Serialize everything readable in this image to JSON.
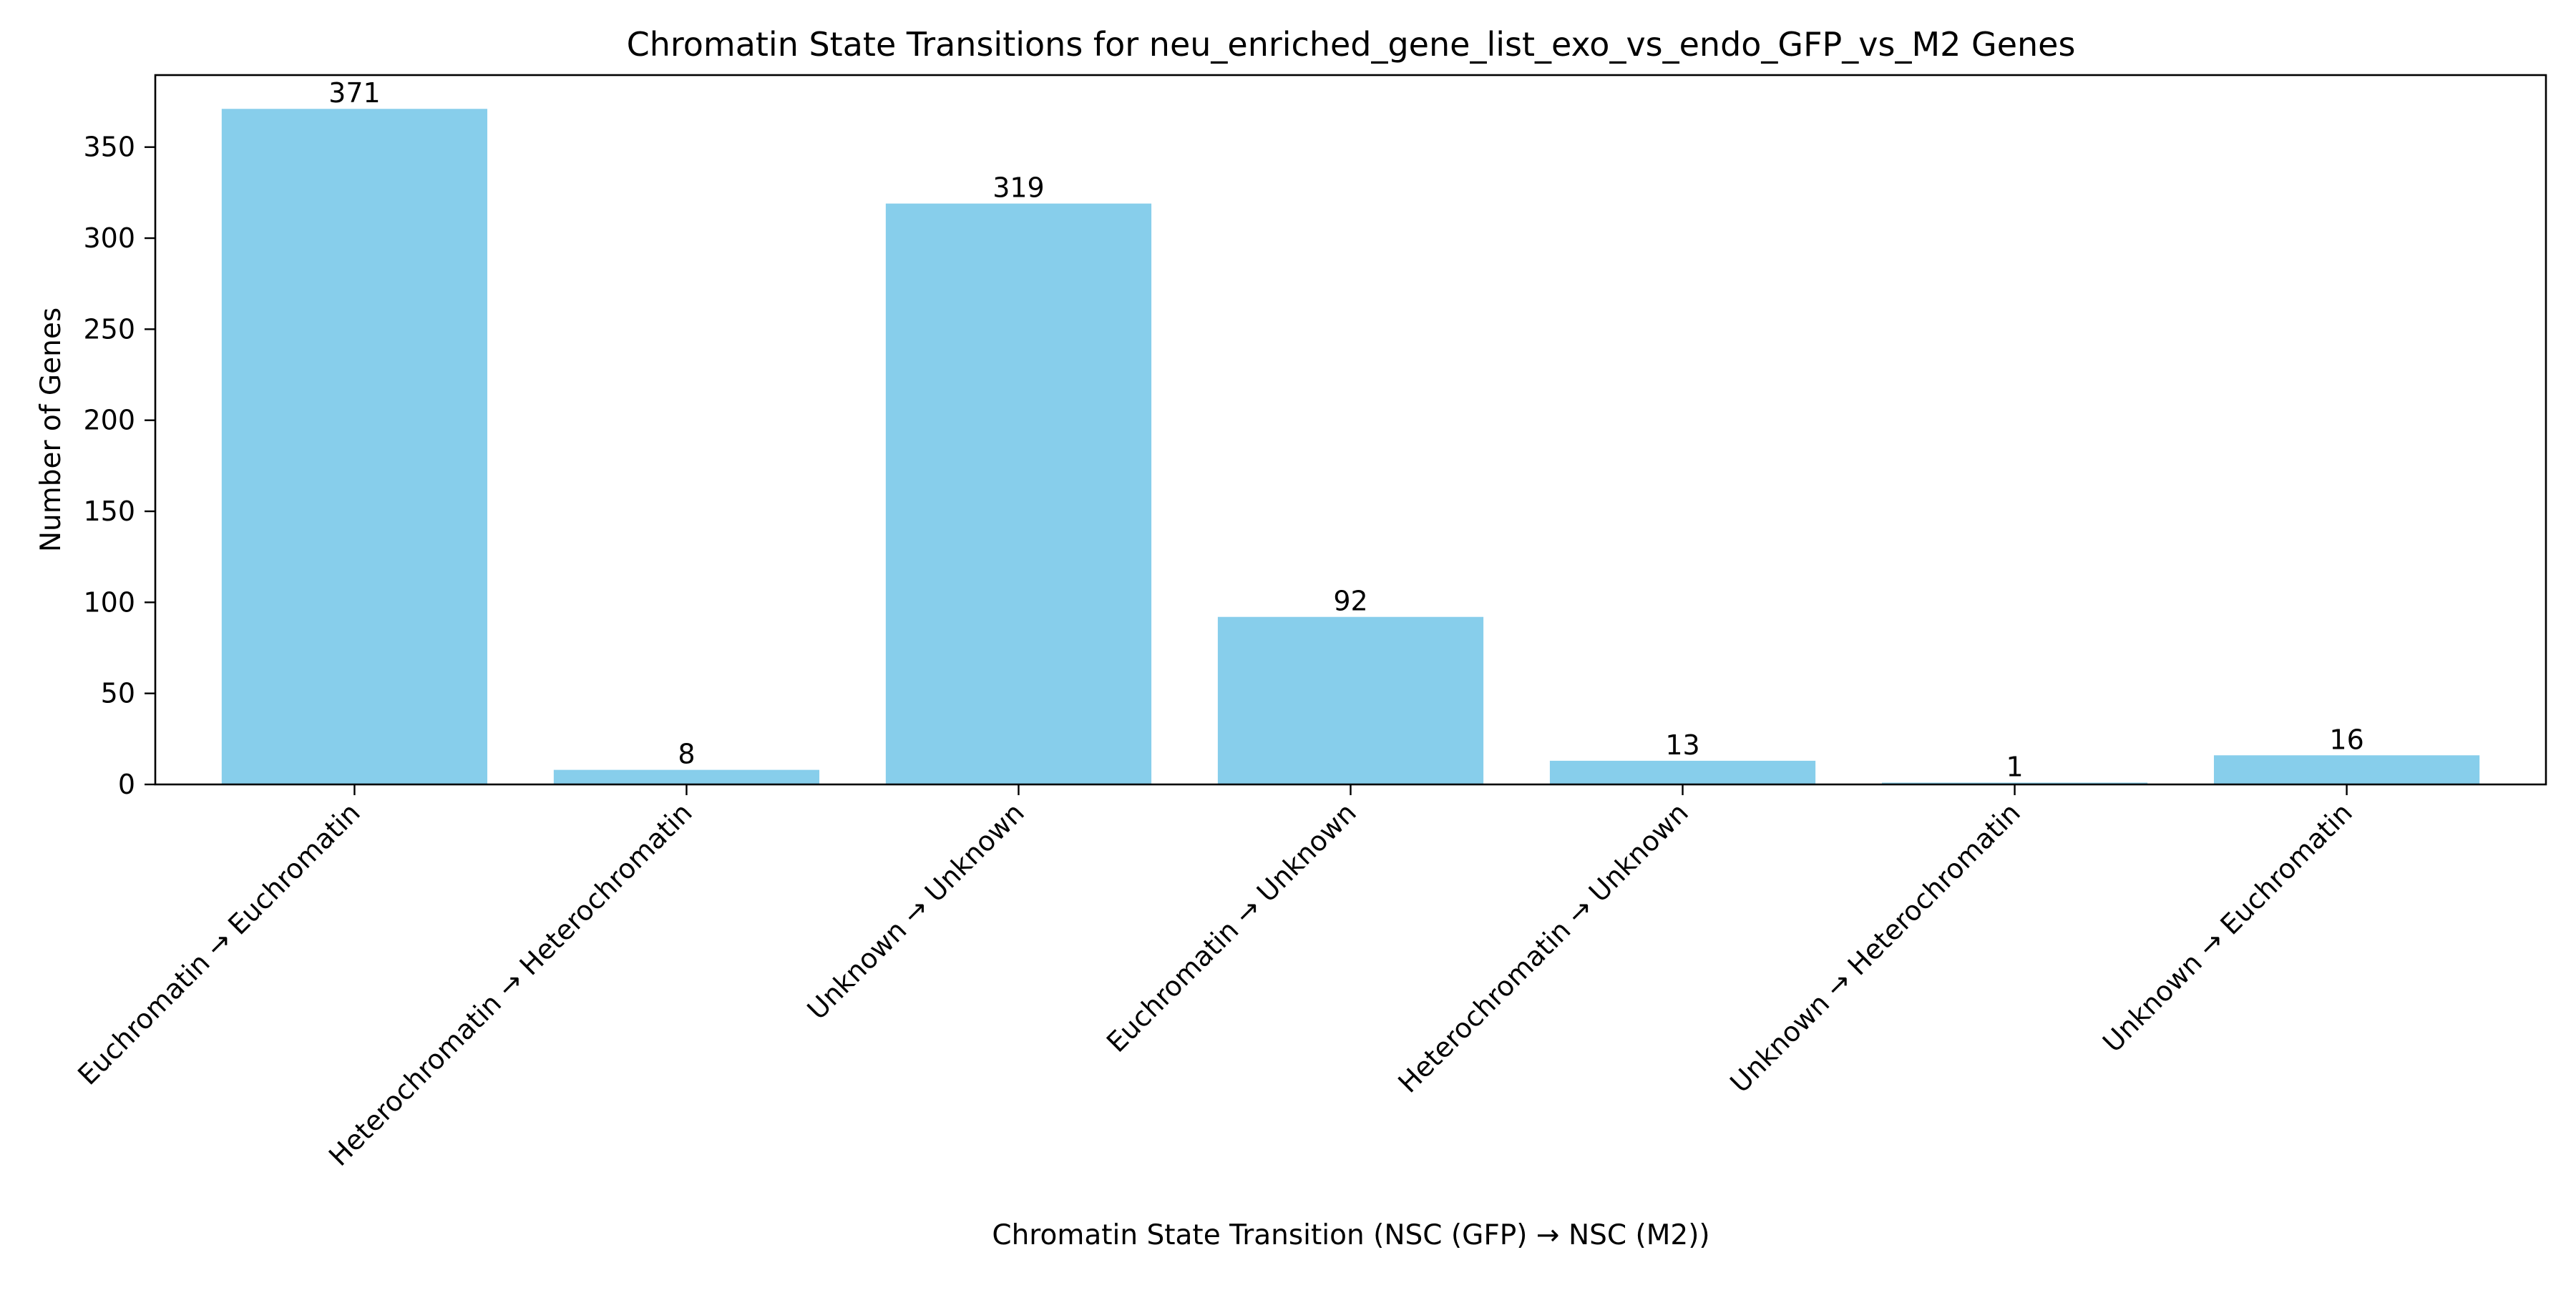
{
  "chart_data": {
    "type": "bar",
    "title": "Chromatin State Transitions for neu_enriched_gene_list_exo_vs_endo_GFP_vs_M2 Genes",
    "xlabel": "Chromatin State Transition (NSC (GFP) → NSC (M2))",
    "ylabel": "Number of Genes",
    "categories": [
      "Euchromatin → Euchromatin",
      "Heterochromatin → Heterochromatin",
      "Unknown → Unknown",
      "Euchromatin → Unknown",
      "Heterochromatin → Unknown",
      "Unknown → Heterochromatin",
      "Unknown → Euchromatin"
    ],
    "values": [
      371,
      8,
      319,
      92,
      13,
      1,
      16
    ],
    "data_labels": [
      "371",
      "8",
      "319",
      "92",
      "13",
      "1",
      "16"
    ],
    "ylim": [
      0,
      389.55
    ],
    "yticks": [
      0,
      50,
      100,
      150,
      200,
      250,
      300,
      350
    ],
    "grid": false,
    "legend": "none",
    "bar_color": "#87CEEB"
  }
}
